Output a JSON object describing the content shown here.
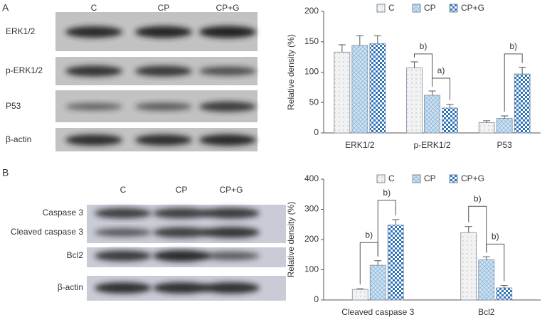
{
  "panels": [
    {
      "label": "A",
      "lanes": [
        "C",
        "CP",
        "CP+G"
      ],
      "rows": [
        "ERK1/2",
        "p-ERK1/2",
        "P53",
        "β-actin"
      ]
    },
    {
      "label": "B",
      "lanes": [
        "C",
        "CP",
        "CP+G"
      ],
      "rows": [
        "Caspase 3",
        "Cleaved caspase 3",
        "Bcl2",
        "β-actin"
      ]
    }
  ],
  "chart_data": [
    {
      "type": "bar",
      "ylabel": "Relative density (%)",
      "categories": [
        "ERK1/2",
        "p-ERK1/2",
        "P53"
      ],
      "series": [
        {
          "name": "C",
          "color": "#f2f2f2",
          "values": [
            133,
            107,
            17
          ],
          "errors": [
            12,
            10,
            3
          ]
        },
        {
          "name": "CP",
          "color": "#cfe3f3",
          "values": [
            144,
            62,
            24
          ],
          "errors": [
            16,
            7,
            4
          ]
        },
        {
          "name": "CP+G",
          "color": "#2f72b8",
          "values": [
            147,
            41,
            97
          ],
          "errors": [
            13,
            6,
            11
          ]
        }
      ],
      "ylim": [
        0,
        200
      ],
      "yticks": [
        0,
        50,
        100,
        150,
        200
      ],
      "legend": "top",
      "annotations": [
        "b)",
        "a)",
        "b)"
      ]
    },
    {
      "type": "bar",
      "ylabel": "Relative density (%)",
      "categories": [
        "Cleaved caspase 3",
        "Bcl2"
      ],
      "series": [
        {
          "name": "C",
          "color": "#f2f2f2",
          "values": [
            35,
            223
          ],
          "errors": [
            2,
            20
          ]
        },
        {
          "name": "CP",
          "color": "#cfe3f3",
          "values": [
            115,
            133
          ],
          "errors": [
            15,
            10
          ]
        },
        {
          "name": "CP+G",
          "color": "#2f72b8",
          "values": [
            248,
            40
          ],
          "errors": [
            18,
            8
          ]
        }
      ],
      "ylim": [
        0,
        400
      ],
      "yticks": [
        0,
        100,
        200,
        300,
        400
      ],
      "legend": "top",
      "annotations": [
        "b)",
        "b)",
        "b)",
        "b)"
      ]
    }
  ]
}
